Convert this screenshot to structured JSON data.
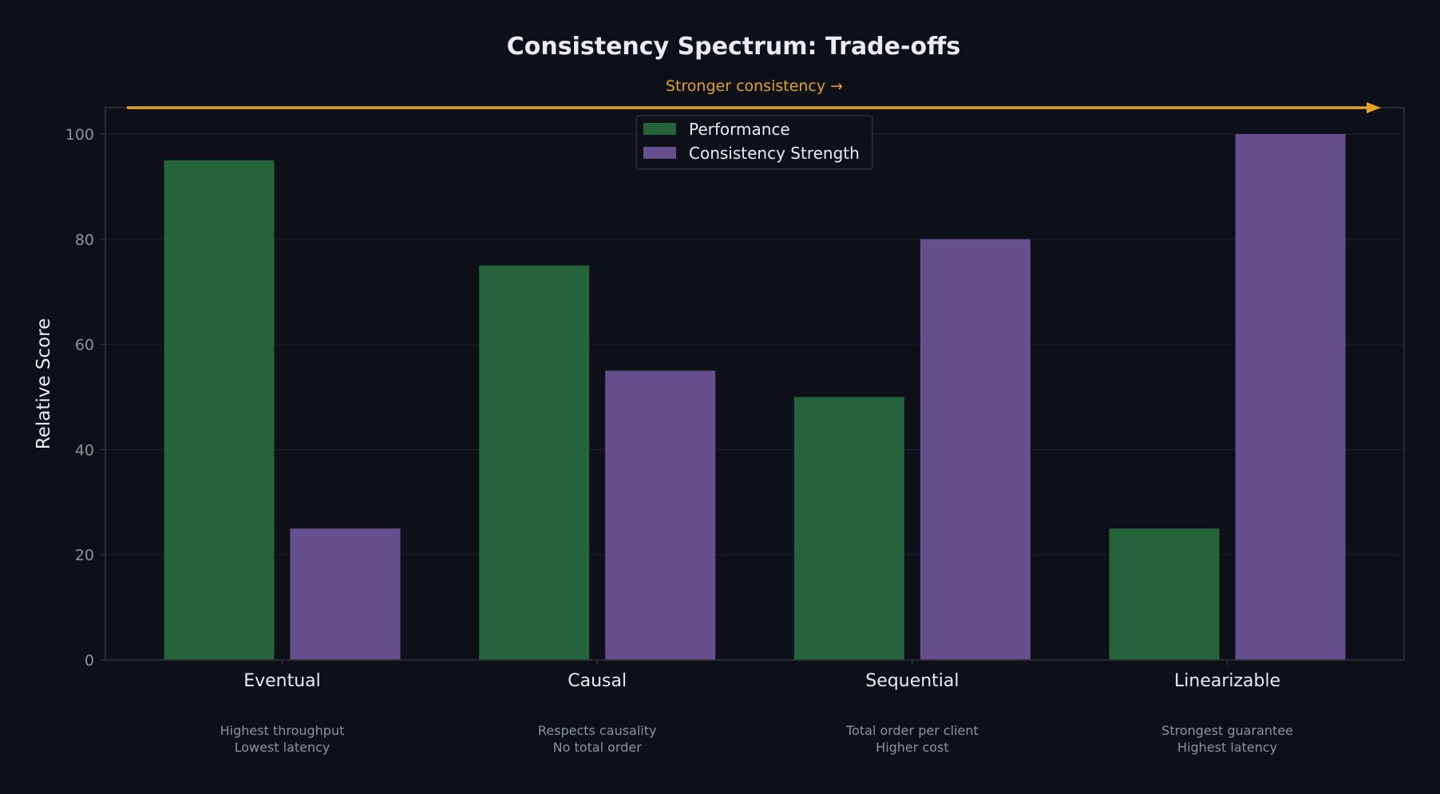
{
  "chart_data": {
    "type": "bar",
    "title": "Consistency Spectrum: Trade-offs",
    "direction_annotation": "Stronger consistency →",
    "ylabel": "Relative Score",
    "xlabel": "",
    "ylim": [
      0,
      105
    ],
    "yticks": [
      0,
      20,
      40,
      60,
      80,
      100
    ],
    "categories": [
      "Eventual",
      "Causal",
      "Sequential",
      "Linearizable"
    ],
    "category_notes": [
      [
        "Highest throughput",
        "Lowest latency"
      ],
      [
        "Respects causality",
        "No total order"
      ],
      [
        "Total order per client",
        "Higher cost"
      ],
      [
        "Strongest guarantee",
        "Highest latency"
      ]
    ],
    "series": [
      {
        "name": "Performance",
        "values": [
          95,
          75,
          50,
          25
        ],
        "color": "#25643a"
      },
      {
        "name": "Consistency Strength",
        "values": [
          25,
          55,
          80,
          100
        ],
        "color": "#654f8d"
      }
    ],
    "legend_position": "top-center",
    "grid": true
  },
  "colors": {
    "background": "#0d1017",
    "title": "#e6edf3",
    "annotation": "#e3a229",
    "axis_text": "#8b949e",
    "label_text": "#e6edf3",
    "note_text": "#8b949e",
    "spine": "#30363d",
    "grid": "#1b2028"
  }
}
